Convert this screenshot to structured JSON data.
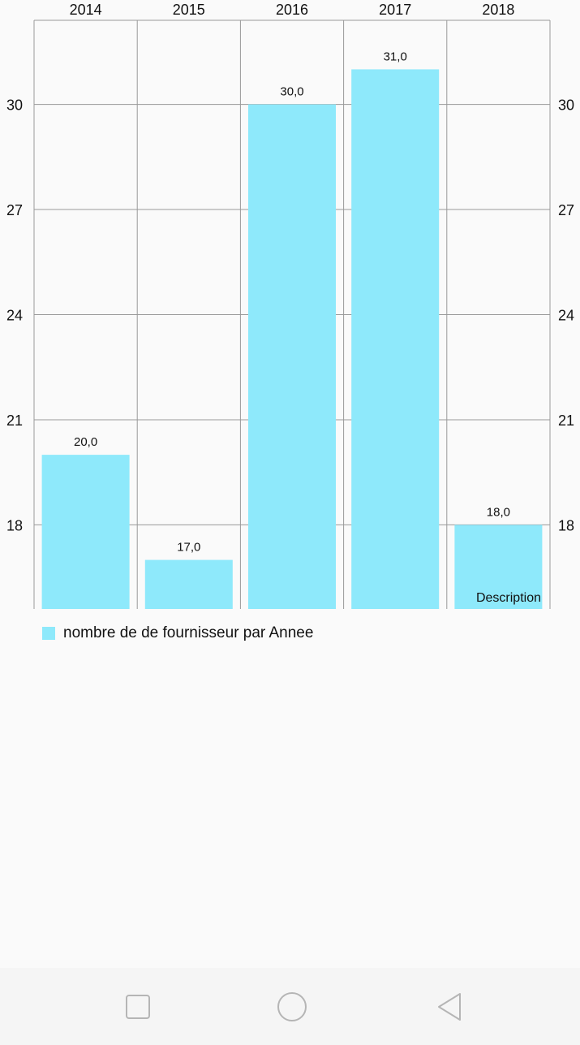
{
  "chart_data": {
    "type": "bar",
    "categories": [
      "2014",
      "2015",
      "2016",
      "2017",
      "2018"
    ],
    "series": [
      {
        "name": "nombre de de fournisseur par Annee",
        "values": [
          20.0,
          17.0,
          30.0,
          31.0,
          18.0
        ]
      }
    ],
    "value_labels": [
      "20,0",
      "17,0",
      "30,0",
      "31,0",
      "18,0"
    ],
    "ylim": [
      15.6,
      32.4
    ],
    "yticks": [
      18,
      21,
      24,
      27,
      30
    ],
    "ytick_labels": [
      "18",
      "21",
      "24",
      "27",
      "30"
    ],
    "y_axis_sides": [
      "left",
      "right"
    ],
    "x_axis_position": "top",
    "grid": true,
    "legend_position": "bottom-left",
    "description": "Description",
    "bar_color": "#8ee9fb",
    "grid_color": "#999999"
  },
  "legend": {
    "label": "nombre de de fournisseur par Annee",
    "color": "#8ee9fb"
  },
  "nav": {
    "recents_icon": "square-icon",
    "home_icon": "circle-icon",
    "back_icon": "triangle-back-icon"
  }
}
